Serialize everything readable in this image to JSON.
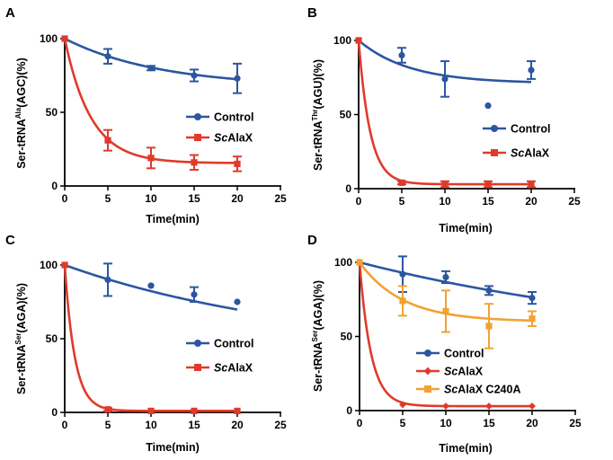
{
  "chart_data": [
    {
      "panel": "A",
      "type": "line",
      "xlabel": "Time(min)",
      "ylabel": {
        "base": "Ser-tRNA",
        "sup": "Ala",
        "rest": "(AGC)(%)"
      },
      "xlim": [
        0,
        25
      ],
      "ylim": [
        0,
        100
      ],
      "xticks": [
        0,
        5,
        10,
        15,
        20,
        25
      ],
      "yticks": [
        0,
        50,
        100
      ],
      "series": [
        {
          "name": "Control",
          "italic_prefix": "",
          "rest": "Control",
          "color": "#2c56a0",
          "marker": "circle",
          "x": [
            0,
            5,
            10,
            15,
            20
          ],
          "y": [
            100,
            88,
            80,
            75,
            73
          ],
          "err": [
            0,
            5,
            1.5,
            4,
            10
          ],
          "fit": {
            "plateau": 67,
            "k": 0.09
          }
        },
        {
          "name": "ScAlaX",
          "italic_prefix": "Sc",
          "rest": "AlaX",
          "color": "#e03a2b",
          "marker": "square",
          "x": [
            0,
            5,
            10,
            15,
            20
          ],
          "y": [
            100,
            31,
            19,
            16,
            15
          ],
          "err": [
            0,
            7,
            7,
            5,
            5
          ],
          "fit": {
            "plateau": 15.5,
            "k": 0.33
          }
        }
      ]
    },
    {
      "panel": "B",
      "type": "line",
      "xlabel": "Time(min)",
      "ylabel": {
        "base": "Ser-tRNA",
        "sup": "Thr",
        "rest": "(AGU)(%)"
      },
      "xlim": [
        0,
        25
      ],
      "ylim": [
        0,
        100
      ],
      "xticks": [
        0,
        5,
        10,
        15,
        20,
        25
      ],
      "yticks": [
        0,
        50,
        100
      ],
      "series": [
        {
          "name": "Control",
          "italic_prefix": "",
          "rest": "Control",
          "color": "#2c56a0",
          "marker": "circle",
          "x": [
            0,
            5,
            10,
            15,
            20
          ],
          "y": [
            100,
            90,
            74,
            56,
            80
          ],
          "err": [
            0,
            5,
            12,
            0,
            6
          ],
          "fit": {
            "plateau": 71,
            "k": 0.17
          }
        },
        {
          "name": "ScAlaX",
          "italic_prefix": "Sc",
          "rest": "AlaX",
          "color": "#e03a2b",
          "marker": "square",
          "x": [
            0,
            5,
            10,
            15,
            20
          ],
          "y": [
            100,
            4,
            3,
            3,
            3
          ],
          "err": [
            0,
            1,
            2,
            2,
            2
          ],
          "fit": {
            "plateau": 3,
            "k": 0.75
          }
        }
      ]
    },
    {
      "panel": "C",
      "type": "line",
      "xlabel": "Time(min)",
      "ylabel": {
        "base": "Ser-tRNA",
        "sup": "Ser",
        "rest": "(AGA)(%)"
      },
      "xlim": [
        0,
        25
      ],
      "ylim": [
        0,
        100
      ],
      "xticks": [
        0,
        5,
        10,
        15,
        20,
        25
      ],
      "yticks": [
        0,
        50,
        100
      ],
      "series": [
        {
          "name": "Control",
          "italic_prefix": "",
          "rest": "Control",
          "color": "#2c56a0",
          "marker": "circle",
          "x": [
            0,
            5,
            10,
            15,
            20
          ],
          "y": [
            100,
            90,
            86,
            80,
            75
          ],
          "err": [
            0,
            11,
            0.5,
            5,
            0.5
          ],
          "fit": {
            "plateau": 40,
            "k": 0.035
          }
        },
        {
          "name": "ScAlaX",
          "italic_prefix": "Sc",
          "rest": "AlaX",
          "color": "#e03a2b",
          "marker": "square",
          "x": [
            0,
            5,
            10,
            15,
            20
          ],
          "y": [
            100,
            2,
            1,
            1,
            1
          ],
          "err": [
            0,
            1,
            0.5,
            0.5,
            0.5
          ],
          "fit": {
            "plateau": 1,
            "k": 0.85
          }
        }
      ]
    },
    {
      "panel": "D",
      "type": "line",
      "xlabel": "Time(min)",
      "ylabel": {
        "base": "Ser-tRNA",
        "sup": "Ser",
        "rest": "(AGA)(%)"
      },
      "xlim": [
        0,
        25
      ],
      "ylim": [
        0,
        100
      ],
      "xticks": [
        0,
        5,
        10,
        15,
        20,
        25
      ],
      "yticks": [
        0,
        50,
        100
      ],
      "series": [
        {
          "name": "Control",
          "italic_prefix": "",
          "rest": "Control",
          "color": "#2c56a0",
          "marker": "circle",
          "x": [
            0,
            5,
            10,
            15,
            20
          ],
          "y": [
            100,
            92,
            90,
            81,
            76
          ],
          "err": [
            0,
            12,
            4,
            3,
            4
          ],
          "fit": {
            "plateau": 40,
            "k": 0.025
          }
        },
        {
          "name": "ScAlaX",
          "italic_prefix": "Sc",
          "rest": "AlaX",
          "color": "#e03a2b",
          "marker": "diamond",
          "x": [
            0,
            5,
            10,
            15,
            20
          ],
          "y": [
            100,
            4,
            3,
            3,
            3
          ],
          "err": [
            0,
            0.5,
            0.5,
            0.5,
            0.5
          ],
          "fit": {
            "plateau": 3,
            "k": 0.75
          }
        },
        {
          "name": "ScAlaX C240A",
          "italic_prefix": "Sc",
          "rest": "AlaX C240A",
          "color": "#f2a233",
          "marker": "square",
          "x": [
            0,
            5,
            10,
            15,
            20
          ],
          "y": [
            100,
            74,
            67,
            57,
            62
          ],
          "err": [
            0,
            10,
            14,
            15,
            5
          ],
          "fit": {
            "plateau": 60,
            "k": 0.2
          }
        }
      ]
    }
  ]
}
